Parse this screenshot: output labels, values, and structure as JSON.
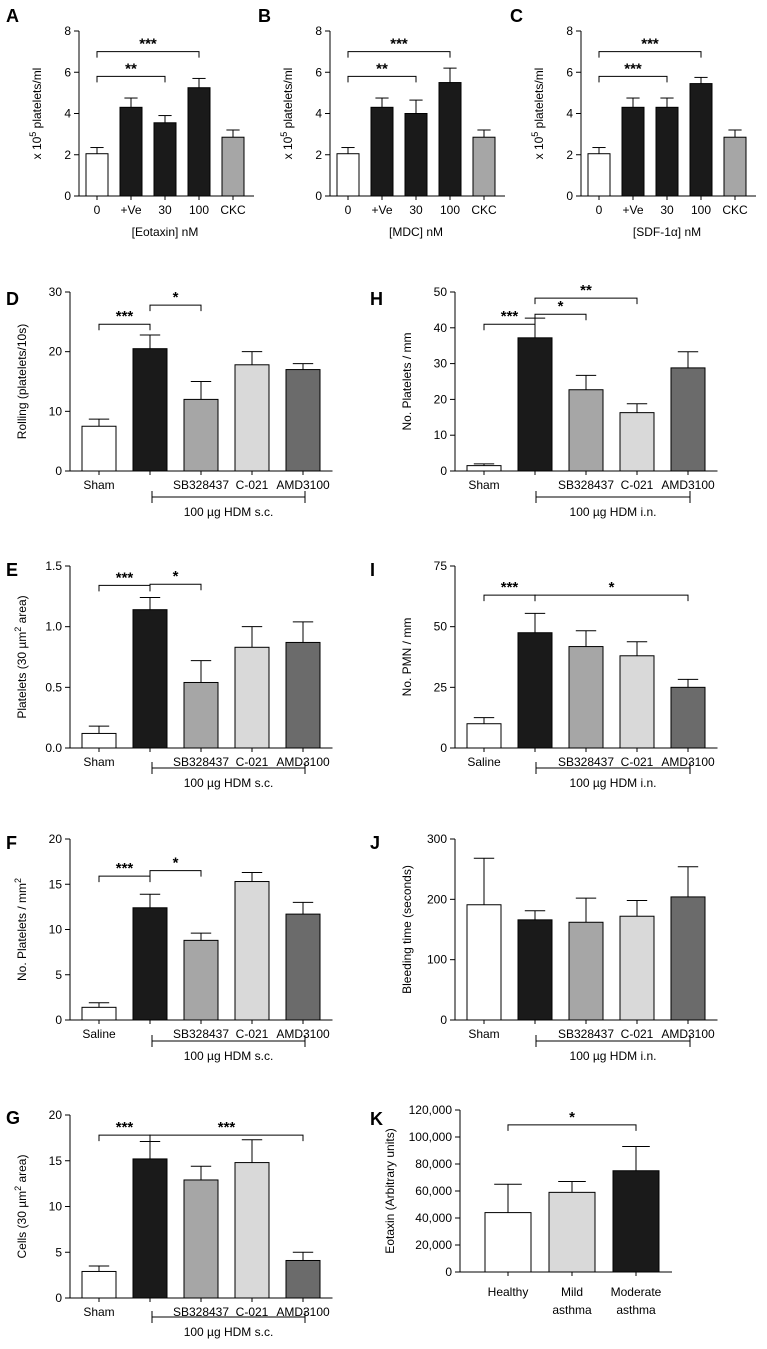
{
  "chart_data": [
    {
      "panel": "A",
      "type": "bar",
      "ylabel_pre": "x 10",
      "ylabel_sup": "5",
      "ylabel_post": " platelets/ml",
      "xlabel": "[Eotaxin] nM",
      "ylim": [
        0,
        8
      ],
      "yticks": [
        "0",
        "2",
        "4",
        "6",
        "8"
      ],
      "categories": [
        "0",
        "+Ve",
        "30",
        "100",
        "CKC"
      ],
      "values": [
        2.05,
        4.3,
        3.55,
        5.25,
        2.85
      ],
      "errors": [
        0.3,
        0.45,
        0.35,
        0.45,
        0.35
      ],
      "fills": [
        "#ffffff",
        "#1a1a1a",
        "#1a1a1a",
        "#1a1a1a",
        "#a6a6a6"
      ],
      "brackets": [
        {
          "from": 0,
          "to": 2,
          "y": 5.8,
          "label": "**"
        },
        {
          "from": 0,
          "to": 3,
          "y": 7.0,
          "label": "***"
        }
      ]
    },
    {
      "panel": "B",
      "type": "bar",
      "ylabel_pre": "x 10",
      "ylabel_sup": "5",
      "ylabel_post": " platelets/ml",
      "xlabel": "[MDC] nM",
      "ylim": [
        0,
        8
      ],
      "yticks": [
        "0",
        "2",
        "4",
        "6",
        "8"
      ],
      "categories": [
        "0",
        "+Ve",
        "30",
        "100",
        "CKC"
      ],
      "values": [
        2.05,
        4.3,
        4.0,
        5.5,
        2.85
      ],
      "errors": [
        0.3,
        0.45,
        0.65,
        0.7,
        0.35
      ],
      "fills": [
        "#ffffff",
        "#1a1a1a",
        "#1a1a1a",
        "#1a1a1a",
        "#a6a6a6"
      ],
      "brackets": [
        {
          "from": 0,
          "to": 2,
          "y": 5.8,
          "label": "**"
        },
        {
          "from": 0,
          "to": 3,
          "y": 7.0,
          "label": "***"
        }
      ]
    },
    {
      "panel": "C",
      "type": "bar",
      "ylabel_pre": "x 10",
      "ylabel_sup": "5",
      "ylabel_post": " platelets/ml",
      "xlabel": "[SDF-1α] nM",
      "ylim": [
        0,
        8
      ],
      "yticks": [
        "0",
        "2",
        "4",
        "6",
        "8"
      ],
      "categories": [
        "0",
        "+Ve",
        "30",
        "100",
        "CKC"
      ],
      "values": [
        2.05,
        4.3,
        4.3,
        5.45,
        2.85
      ],
      "errors": [
        0.3,
        0.45,
        0.45,
        0.3,
        0.35
      ],
      "fills": [
        "#ffffff",
        "#1a1a1a",
        "#1a1a1a",
        "#1a1a1a",
        "#a6a6a6"
      ],
      "brackets": [
        {
          "from": 0,
          "to": 2,
          "y": 5.8,
          "label": "***"
        },
        {
          "from": 0,
          "to": 3,
          "y": 7.0,
          "label": "***"
        }
      ]
    },
    {
      "panel": "D",
      "type": "bar",
      "ylabel": "Rolling (platelets/10s)",
      "ylim": [
        0,
        30
      ],
      "yticks": [
        "0",
        "10",
        "20",
        "30"
      ],
      "categories": [
        "Sham",
        "",
        "SB328437",
        "C-021",
        "AMD3100"
      ],
      "values": [
        7.5,
        20.5,
        12.0,
        17.8,
        17.0
      ],
      "errors": [
        1.2,
        2.3,
        3.0,
        2.2,
        1.0
      ],
      "fills": [
        "#ffffff",
        "#1a1a1a",
        "#a6a6a6",
        "#d9d9d9",
        "#6b6b6b"
      ],
      "group_label": "100 µg HDM s.c.",
      "brackets": [
        {
          "from": 0,
          "to": 1,
          "y": 24.6,
          "label": "***"
        },
        {
          "from": 1,
          "to": 2,
          "y": 27.8,
          "label": "*"
        }
      ]
    },
    {
      "panel": "H",
      "type": "bar",
      "ylabel": "No. Platelets / mm",
      "ylim": [
        0,
        50
      ],
      "yticks": [
        "0",
        "10",
        "20",
        "30",
        "40",
        "50"
      ],
      "categories": [
        "Sham",
        "",
        "SB328437",
        "C-021",
        "AMD3100"
      ],
      "values": [
        1.5,
        37.2,
        22.7,
        16.3,
        28.8
      ],
      "errors": [
        0.5,
        5.5,
        4.0,
        2.5,
        4.5
      ],
      "fills": [
        "#ffffff",
        "#1a1a1a",
        "#a6a6a6",
        "#d9d9d9",
        "#6b6b6b"
      ],
      "group_label": "100 µg HDM i.n.",
      "brackets": [
        {
          "from": 0,
          "to": 1,
          "y": 41.0,
          "label": "***"
        },
        {
          "from": 1,
          "to": 2,
          "y": 43.8,
          "label": "*"
        },
        {
          "from": 1,
          "to": 3,
          "y": 48.3,
          "label": "**"
        }
      ]
    },
    {
      "panel": "E",
      "type": "bar",
      "ylabel_pre": "Platelets (30 µm",
      "ylabel_sup": "2",
      "ylabel_post": " area)",
      "ylim": [
        0,
        1.5
      ],
      "yticks": [
        "0.0",
        "0.5",
        "1.0",
        "1.5"
      ],
      "categories": [
        "Sham",
        "",
        "SB328437",
        "C-021",
        "AMD3100"
      ],
      "values": [
        0.12,
        1.14,
        0.54,
        0.83,
        0.87
      ],
      "errors": [
        0.06,
        0.1,
        0.18,
        0.17,
        0.17
      ],
      "fills": [
        "#ffffff",
        "#1a1a1a",
        "#a6a6a6",
        "#d9d9d9",
        "#6b6b6b"
      ],
      "group_label": "100 µg HDM s.c.",
      "brackets": [
        {
          "from": 0,
          "to": 1,
          "y": 1.34,
          "label": "***"
        },
        {
          "from": 1,
          "to": 2,
          "y": 1.35,
          "label": "*"
        }
      ]
    },
    {
      "panel": "I",
      "type": "bar",
      "ylabel": "No. PMN / mm",
      "ylim": [
        0,
        75
      ],
      "yticks": [
        "0",
        "25",
        "50",
        "75"
      ],
      "categories": [
        "Saline",
        "",
        "SB328437",
        "C-021",
        "AMD3100"
      ],
      "values": [
        10.0,
        47.5,
        41.8,
        38.0,
        25.0
      ],
      "errors": [
        2.5,
        8.0,
        6.5,
        5.8,
        3.3
      ],
      "fills": [
        "#ffffff",
        "#1a1a1a",
        "#a6a6a6",
        "#d9d9d9",
        "#6b6b6b"
      ],
      "group_label": "100 µg HDM i.n.",
      "brackets": [
        {
          "from": 0,
          "to": 1,
          "y": 63.0,
          "label": "***"
        },
        {
          "from": 1,
          "to": 4,
          "y": 63.0,
          "label": "*"
        }
      ]
    },
    {
      "panel": "F",
      "type": "bar",
      "ylabel_pre": "No. Platelets / mm",
      "ylabel_sup": "2",
      "ylabel_post": "",
      "ylim": [
        0,
        20
      ],
      "yticks": [
        "0",
        "5",
        "10",
        "15",
        "20"
      ],
      "categories": [
        "Saline",
        "",
        "SB328437",
        "C-021",
        "AMD3100"
      ],
      "values": [
        1.4,
        12.4,
        8.8,
        15.3,
        11.7
      ],
      "errors": [
        0.5,
        1.5,
        0.8,
        1.0,
        1.3
      ],
      "fills": [
        "#ffffff",
        "#1a1a1a",
        "#a6a6a6",
        "#d9d9d9",
        "#6b6b6b"
      ],
      "group_label": "100 µg HDM s.c.",
      "brackets": [
        {
          "from": 0,
          "to": 1,
          "y": 15.9,
          "label": "***"
        },
        {
          "from": 1,
          "to": 2,
          "y": 16.5,
          "label": "*"
        }
      ]
    },
    {
      "panel": "J",
      "type": "bar",
      "ylabel": "Bleeding time (seconds)",
      "ylim": [
        0,
        300
      ],
      "yticks": [
        "0",
        "100",
        "200",
        "300"
      ],
      "categories": [
        "Sham",
        "",
        "SB328437",
        "C-021",
        "AMD3100"
      ],
      "values": [
        191,
        166,
        162,
        172,
        204
      ],
      "errors": [
        77,
        15,
        40,
        26,
        50
      ],
      "fills": [
        "#ffffff",
        "#1a1a1a",
        "#a6a6a6",
        "#d9d9d9",
        "#6b6b6b"
      ],
      "group_label": "100 µg HDM i.n.",
      "brackets": []
    },
    {
      "panel": "G",
      "type": "bar",
      "ylabel_pre": "Cells (30 µm",
      "ylabel_sup": "2",
      "ylabel_post": " area)",
      "ylim": [
        0,
        20
      ],
      "yticks": [
        "0",
        "5",
        "10",
        "15",
        "20"
      ],
      "categories": [
        "Sham",
        "",
        "SB328437",
        "C-021",
        "AMD3100"
      ],
      "values": [
        2.9,
        15.2,
        12.9,
        14.8,
        4.1
      ],
      "errors": [
        0.6,
        1.9,
        1.5,
        2.5,
        0.9
      ],
      "fills": [
        "#ffffff",
        "#1a1a1a",
        "#a6a6a6",
        "#d9d9d9",
        "#6b6b6b"
      ],
      "group_label": "100 µg HDM s.c.",
      "brackets": [
        {
          "from": 0,
          "to": 1,
          "y": 17.8,
          "label": "***"
        },
        {
          "from": 1,
          "to": 4,
          "y": 17.8,
          "label": "***"
        }
      ]
    },
    {
      "panel": "K",
      "type": "bar",
      "ylabel": "Eotaxin (Arbitrary units)",
      "ylim": [
        0,
        120000
      ],
      "yticks": [
        "0",
        "20,000",
        "40,000",
        "60,000",
        "80,000",
        "100,000",
        "120,000"
      ],
      "categories": [
        "Healthy",
        "Mild asthma",
        "Moderate asthma"
      ],
      "values": [
        44000,
        59000,
        75000
      ],
      "errors": [
        21000,
        8000,
        18000
      ],
      "fills": [
        "#ffffff",
        "#d9d9d9",
        "#1a1a1a"
      ],
      "brackets": [
        {
          "from": 0,
          "to": 2,
          "y": 109000,
          "label": "*"
        }
      ]
    }
  ]
}
